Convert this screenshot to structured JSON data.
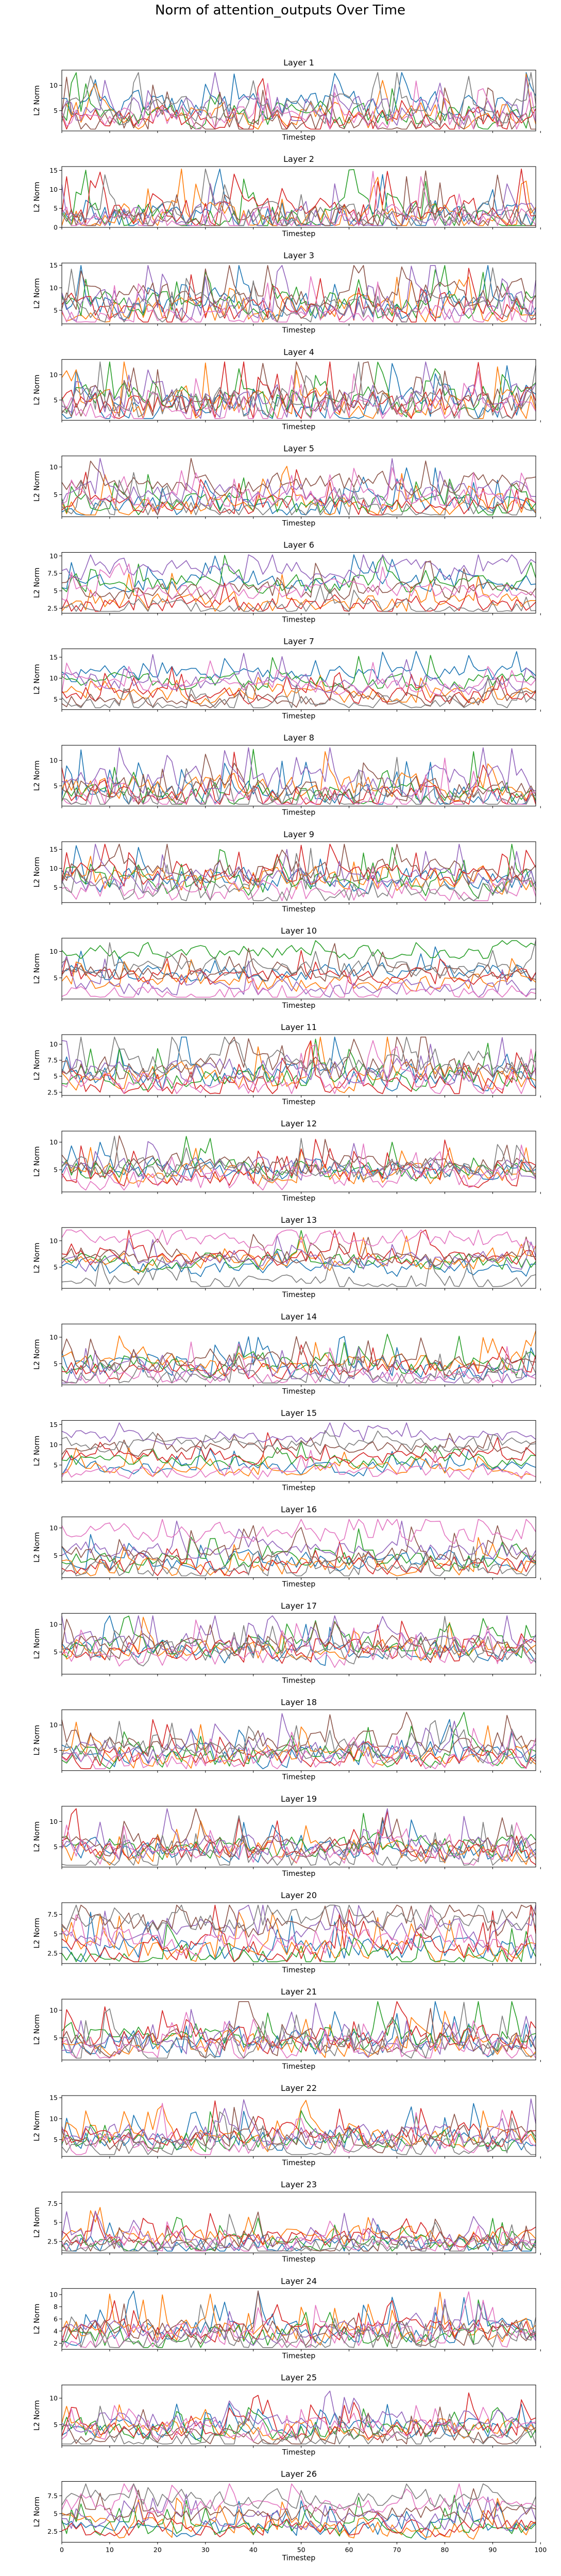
{
  "figure_title": "Norm of attention_outputs Over Time",
  "colors": [
    "#1f77b4",
    "#ff7f0e",
    "#2ca02c",
    "#d62728",
    "#9467bd",
    "#8c564b",
    "#e377c2",
    "#7f7f7f"
  ],
  "chart_data": [
    {
      "type": "line",
      "title": "Layer 1",
      "xlabel": "Timestep",
      "ylabel": "L2 Norm",
      "xlim": [
        0,
        99
      ],
      "ylim": [
        1,
        13
      ],
      "yticks": [
        5,
        10
      ],
      "xticks_shown": false,
      "series_count": 8,
      "base_levels": [
        6,
        4,
        4,
        3,
        5,
        2,
        3,
        5
      ],
      "amplitude": 4
    },
    {
      "type": "line",
      "title": "Layer 2",
      "xlabel": "Timestep",
      "ylabel": "L2 Norm",
      "xlim": [
        0,
        99
      ],
      "ylim": [
        0,
        16
      ],
      "yticks": [
        0,
        5,
        10,
        15
      ],
      "xticks_shown": false,
      "series_count": 8,
      "base_levels": [
        2,
        2,
        3,
        4,
        2,
        2,
        1,
        3
      ],
      "amplitude": 6
    },
    {
      "type": "line",
      "title": "Layer 3",
      "xlabel": "Timestep",
      "ylabel": "L2 Norm",
      "xlim": [
        0,
        99
      ],
      "ylim": [
        2,
        15.5
      ],
      "yticks": [
        5,
        10,
        15
      ],
      "xticks_shown": false,
      "series_count": 8,
      "base_levels": [
        6,
        5,
        6,
        5,
        6,
        8,
        3,
        5
      ],
      "amplitude": 5
    },
    {
      "type": "line",
      "title": "Layer 4",
      "xlabel": "Timestep",
      "ylabel": "L2 Norm",
      "xlim": [
        0,
        99
      ],
      "ylim": [
        1,
        13
      ],
      "yticks": [
        5,
        10
      ],
      "xticks_shown": false,
      "series_count": 8,
      "base_levels": [
        4,
        4,
        5,
        4,
        5,
        5,
        3,
        4
      ],
      "amplitude": 5
    },
    {
      "type": "line",
      "title": "Layer 5",
      "xlabel": "Timestep",
      "ylabel": "L2 Norm",
      "xlim": [
        0,
        99
      ],
      "ylim": [
        1,
        12
      ],
      "yticks": [
        5,
        10
      ],
      "xticks_shown": false,
      "series_count": 8,
      "base_levels": [
        3,
        3,
        3,
        3,
        5,
        7,
        4,
        2
      ],
      "amplitude": 3
    },
    {
      "type": "line",
      "title": "Layer 6",
      "xlabel": "Timestep",
      "ylabel": "L2 Norm",
      "xlim": [
        0,
        99
      ],
      "ylim": [
        1.8,
        10.5
      ],
      "yticks": [
        2.5,
        5.0,
        7.5,
        10.0
      ],
      "xticks_shown": false,
      "series_count": 8,
      "base_levels": [
        6,
        3,
        6,
        3,
        8,
        5,
        5,
        2.5
      ],
      "amplitude": 2
    },
    {
      "type": "line",
      "title": "Layer 7",
      "xlabel": "Timestep",
      "ylabel": "L2 Norm",
      "xlim": [
        0,
        99
      ],
      "ylim": [
        2.5,
        17
      ],
      "yticks": [
        5,
        10,
        15
      ],
      "xticks_shown": false,
      "series_count": 8,
      "base_levels": [
        11,
        6,
        9,
        6,
        9,
        5,
        8,
        4
      ],
      "amplitude": 3
    },
    {
      "type": "line",
      "title": "Layer 8",
      "xlabel": "Timestep",
      "ylabel": "L2 Norm",
      "xlim": [
        0,
        99
      ],
      "ylim": [
        1,
        13
      ],
      "yticks": [
        5,
        10
      ],
      "xticks_shown": false,
      "series_count": 8,
      "base_levels": [
        3,
        5,
        3,
        3,
        6,
        4,
        2,
        2
      ],
      "amplitude": 4
    },
    {
      "type": "line",
      "title": "Layer 9",
      "xlabel": "Timestep",
      "ylabel": "L2 Norm",
      "xlim": [
        0,
        99
      ],
      "ylim": [
        1,
        17
      ],
      "yticks": [
        5,
        10,
        15
      ],
      "xticks_shown": false,
      "series_count": 8,
      "base_levels": [
        7,
        7,
        6,
        8,
        7,
        9,
        4,
        4
      ],
      "amplitude": 5
    },
    {
      "type": "line",
      "title": "Layer 10",
      "xlabel": "Timestep",
      "ylabel": "L2 Norm",
      "xlim": [
        0,
        99
      ],
      "ylim": [
        1,
        12.5
      ],
      "yticks": [
        5,
        10
      ],
      "xticks_shown": false,
      "series_count": 8,
      "base_levels": [
        6,
        4,
        10,
        5,
        3,
        6,
        2,
        7
      ],
      "amplitude": 2.5
    },
    {
      "type": "line",
      "title": "Layer 11",
      "xlabel": "Timestep",
      "ylabel": "L2 Norm",
      "xlim": [
        0,
        99
      ],
      "ylim": [
        2,
        11.5
      ],
      "yticks": [
        2.5,
        5.0,
        7.5,
        10.0
      ],
      "xticks_shown": false,
      "series_count": 8,
      "base_levels": [
        5,
        5,
        5,
        4,
        6,
        6,
        4,
        7
      ],
      "amplitude": 3
    },
    {
      "type": "line",
      "title": "Layer 12",
      "xlabel": "Timestep",
      "ylabel": "L2 Norm",
      "xlim": [
        0,
        99
      ],
      "ylim": [
        1,
        12
      ],
      "yticks": [
        5,
        10
      ],
      "xticks_shown": false,
      "series_count": 8,
      "base_levels": [
        5,
        4,
        5,
        4,
        5,
        6,
        3,
        5
      ],
      "amplitude": 3
    },
    {
      "type": "line",
      "title": "Layer 13",
      "xlabel": "Timestep",
      "ylabel": "L2 Norm",
      "xlim": [
        0,
        99
      ],
      "ylim": [
        1,
        12.5
      ],
      "yticks": [
        5,
        10
      ],
      "xticks_shown": false,
      "series_count": 8,
      "base_levels": [
        5,
        6,
        6,
        7,
        6,
        7,
        10,
        2
      ],
      "amplitude": 2.5
    },
    {
      "type": "line",
      "title": "Layer 14",
      "xlabel": "Timestep",
      "ylabel": "L2 Norm",
      "xlim": [
        0,
        99
      ],
      "ylim": [
        1,
        12.5
      ],
      "yticks": [
        5,
        10
      ],
      "xticks_shown": false,
      "series_count": 8,
      "base_levels": [
        4,
        5,
        5,
        4,
        3,
        5,
        2,
        2
      ],
      "amplitude": 3
    },
    {
      "type": "line",
      "title": "Layer 15",
      "xlabel": "Timestep",
      "ylabel": "L2 Norm",
      "xlim": [
        0,
        99
      ],
      "ylim": [
        1,
        16
      ],
      "yticks": [
        5,
        10,
        15
      ],
      "xticks_shown": false,
      "series_count": 8,
      "base_levels": [
        4,
        4,
        6,
        7,
        12,
        9,
        3,
        10
      ],
      "amplitude": 2.5
    },
    {
      "type": "line",
      "title": "Layer 16",
      "xlabel": "Timestep",
      "ylabel": "L2 Norm",
      "xlim": [
        0,
        99
      ],
      "ylim": [
        1,
        12
      ],
      "yticks": [
        5,
        10
      ],
      "xticks_shown": false,
      "series_count": 8,
      "base_levels": [
        4,
        3,
        4,
        3,
        6,
        5,
        9,
        2
      ],
      "amplitude": 2.5
    },
    {
      "type": "line",
      "title": "Layer 17",
      "xlabel": "Timestep",
      "ylabel": "L2 Norm",
      "xlim": [
        0,
        99
      ],
      "ylim": [
        1,
        12
      ],
      "yticks": [
        5,
        10
      ],
      "xticks_shown": false,
      "series_count": 8,
      "base_levels": [
        5,
        5,
        6,
        5,
        7,
        6,
        4,
        5
      ],
      "amplitude": 3
    },
    {
      "type": "line",
      "title": "Layer 18",
      "xlabel": "Timestep",
      "ylabel": "L2 Norm",
      "xlim": [
        0,
        99
      ],
      "ylim": [
        1,
        13
      ],
      "yticks": [
        5,
        10
      ],
      "xticks_shown": false,
      "series_count": 8,
      "base_levels": [
        4,
        4,
        4,
        4,
        5,
        7,
        3,
        5
      ],
      "amplitude": 3.5
    },
    {
      "type": "line",
      "title": "Layer 19",
      "xlabel": "Timestep",
      "ylabel": "L2 Norm",
      "xlim": [
        0,
        99
      ],
      "ylim": [
        1,
        13
      ],
      "yticks": [
        5,
        10
      ],
      "xticks_shown": false,
      "series_count": 8,
      "base_levels": [
        4,
        4,
        5,
        4,
        5,
        5,
        4,
        2
      ],
      "amplitude": 3.5
    },
    {
      "type": "line",
      "title": "Layer 20",
      "xlabel": "Timestep",
      "ylabel": "L2 Norm",
      "xlim": [
        0,
        99
      ],
      "ylim": [
        1.2,
        9
      ],
      "yticks": [
        2.5,
        5.0,
        7.5
      ],
      "xticks_shown": false,
      "series_count": 8,
      "base_levels": [
        3,
        3,
        2,
        3,
        5,
        6,
        4,
        7
      ],
      "amplitude": 2.5
    },
    {
      "type": "line",
      "title": "Layer 21",
      "xlabel": "Timestep",
      "ylabel": "L2 Norm",
      "xlim": [
        0,
        99
      ],
      "ylim": [
        1,
        12
      ],
      "yticks": [
        5,
        10
      ],
      "xticks_shown": false,
      "series_count": 8,
      "base_levels": [
        4,
        4,
        5,
        5,
        4,
        4,
        3,
        3
      ],
      "amplitude": 3.5
    },
    {
      "type": "line",
      "title": "Layer 22",
      "xlabel": "Timestep",
      "ylabel": "L2 Norm",
      "xlim": [
        0,
        99
      ],
      "ylim": [
        1,
        15.5
      ],
      "yticks": [
        5,
        10,
        15
      ],
      "xticks_shown": false,
      "series_count": 8,
      "base_levels": [
        5,
        5,
        5,
        6,
        6,
        5,
        4,
        3
      ],
      "amplitude": 4
    },
    {
      "type": "line",
      "title": "Layer 23",
      "xlabel": "Timestep",
      "ylabel": "L2 Norm",
      "xlim": [
        0,
        99
      ],
      "ylim": [
        1,
        9
      ],
      "yticks": [
        2.5,
        5.0,
        7.5
      ],
      "xticks_shown": false,
      "series_count": 8,
      "base_levels": [
        2,
        3,
        2,
        3,
        2.5,
        2,
        2,
        1.6
      ],
      "amplitude": 2
    },
    {
      "type": "line",
      "title": "Layer 24",
      "xlabel": "Timestep",
      "ylabel": "L2 Norm",
      "xlim": [
        0,
        99
      ],
      "ylim": [
        1,
        11
      ],
      "yticks": [
        2,
        4,
        6,
        8,
        10
      ],
      "xticks_shown": false,
      "series_count": 8,
      "base_levels": [
        4,
        4,
        3,
        4,
        4,
        4,
        3,
        2
      ],
      "amplitude": 3
    },
    {
      "type": "line",
      "title": "Layer 25",
      "xlabel": "Timestep",
      "ylabel": "L2 Norm",
      "xlim": [
        0,
        99
      ],
      "ylim": [
        1,
        12.5
      ],
      "yticks": [
        5,
        10
      ],
      "xticks_shown": false,
      "series_count": 8,
      "base_levels": [
        4,
        4,
        4,
        4,
        6,
        3,
        4,
        2
      ],
      "amplitude": 3
    },
    {
      "type": "line",
      "title": "Layer 26",
      "xlabel": "Timestep",
      "ylabel": "L2 Norm",
      "xlim": [
        0,
        99
      ],
      "ylim": [
        1,
        9.5
      ],
      "yticks": [
        2.5,
        5.0,
        7.5
      ],
      "xticks": [
        0,
        10,
        20,
        30,
        40,
        50,
        60,
        70,
        80,
        90,
        100
      ],
      "xticks_shown": true,
      "series_count": 8,
      "base_levels": [
        3,
        3,
        3,
        3,
        4,
        5,
        6,
        7
      ],
      "amplitude": 2
    }
  ]
}
